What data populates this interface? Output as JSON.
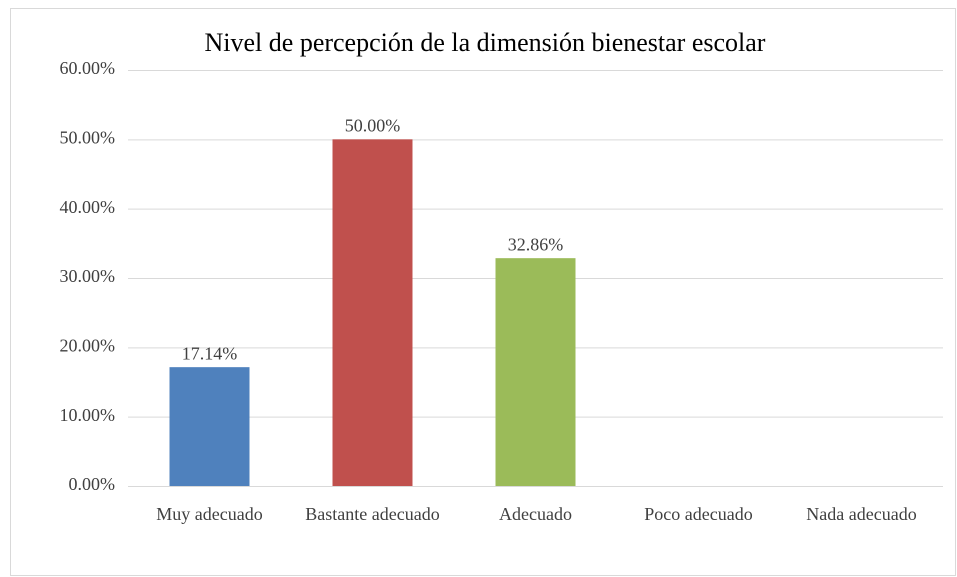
{
  "chart_data": {
    "type": "bar",
    "title": "Nivel de percepción de la dimensión bienestar escolar",
    "categories": [
      "Muy adecuado",
      "Bastante adecuado",
      "Adecuado",
      "Poco adecuado",
      "Nada adecuado"
    ],
    "values": [
      17.14,
      50,
      32.86,
      null,
      null
    ],
    "value_labels": [
      "17.14%",
      "50.00%",
      "32.86%",
      null,
      null
    ],
    "colors": [
      "#4f81bd",
      "#c0504d",
      "#9bbb59",
      null,
      null
    ],
    "ylim": [
      0,
      60
    ],
    "yticks": [
      {
        "value": 0,
        "label": "0.00%"
      },
      {
        "value": 10,
        "label": "10.00%"
      },
      {
        "value": 20,
        "label": "20.00%"
      },
      {
        "value": 30,
        "label": "30.00%"
      },
      {
        "value": 40,
        "label": "40.00%"
      },
      {
        "value": 50,
        "label": "50.00%"
      },
      {
        "value": 60,
        "label": "60.00%"
      }
    ],
    "grid": true
  }
}
